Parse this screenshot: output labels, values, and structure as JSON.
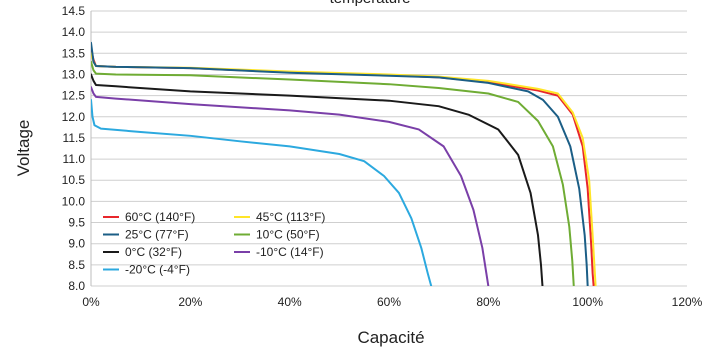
{
  "chart_data": {
    "type": "line",
    "title": "temperature",
    "xlabel": "Capacité",
    "ylabel": "Voltage",
    "xlim": [
      0,
      120
    ],
    "ylim": [
      8.0,
      14.5
    ],
    "x_unit": "%",
    "x_ticks": [
      "0%",
      "20%",
      "40%",
      "60%",
      "80%",
      "100%",
      "120%"
    ],
    "y_ticks": [
      "8.0",
      "8.5",
      "9.0",
      "9.5",
      "10.0",
      "10.5",
      "11.0",
      "11.5",
      "12.0",
      "12.5",
      "13.0",
      "13.5",
      "14.0",
      "14.5"
    ],
    "grid": true,
    "legend_position": "bottom-left",
    "series": [
      {
        "name": "60°C (140°F)",
        "color": "#e8262b",
        "points": [
          [
            0,
            13.6
          ],
          [
            0.5,
            13.35
          ],
          [
            1,
            13.2
          ],
          [
            5,
            13.18
          ],
          [
            20,
            13.15
          ],
          [
            40,
            13.05
          ],
          [
            60,
            12.98
          ],
          [
            70,
            12.93
          ],
          [
            80,
            12.82
          ],
          [
            90,
            12.62
          ],
          [
            94,
            12.5
          ],
          [
            97,
            12.05
          ],
          [
            99,
            11.3
          ],
          [
            100,
            10.3
          ],
          [
            100.7,
            9.0
          ],
          [
            101,
            8.3
          ],
          [
            101.2,
            8.0
          ]
        ]
      },
      {
        "name": "45°C (113°F)",
        "color": "#ffe528",
        "points": [
          [
            0,
            13.5
          ],
          [
            0.5,
            13.3
          ],
          [
            1,
            13.2
          ],
          [
            5,
            13.18
          ],
          [
            20,
            13.16
          ],
          [
            40,
            13.07
          ],
          [
            60,
            13.0
          ],
          [
            70,
            12.95
          ],
          [
            80,
            12.85
          ],
          [
            90,
            12.66
          ],
          [
            94,
            12.55
          ],
          [
            97,
            12.1
          ],
          [
            99,
            11.5
          ],
          [
            100.3,
            10.5
          ],
          [
            101,
            9.2
          ],
          [
            101.4,
            8.4
          ],
          [
            101.6,
            8.0
          ]
        ]
      },
      {
        "name": "25°C (77°F)",
        "color": "#1b5e86",
        "points": [
          [
            0,
            13.75
          ],
          [
            0.5,
            13.3
          ],
          [
            1,
            13.2
          ],
          [
            5,
            13.18
          ],
          [
            20,
            13.15
          ],
          [
            40,
            13.04
          ],
          [
            60,
            12.97
          ],
          [
            70,
            12.93
          ],
          [
            80,
            12.8
          ],
          [
            88,
            12.6
          ],
          [
            91,
            12.4
          ],
          [
            94,
            12.0
          ],
          [
            96.5,
            11.3
          ],
          [
            98.3,
            10.3
          ],
          [
            99.4,
            9.2
          ],
          [
            99.8,
            8.5
          ],
          [
            100,
            8.0
          ]
        ]
      },
      {
        "name": "10°C (50°F)",
        "color": "#6fac34",
        "points": [
          [
            0,
            13.3
          ],
          [
            0.5,
            13.1
          ],
          [
            1,
            13.02
          ],
          [
            5,
            13.0
          ],
          [
            20,
            12.98
          ],
          [
            40,
            12.88
          ],
          [
            60,
            12.77
          ],
          [
            70,
            12.68
          ],
          [
            80,
            12.55
          ],
          [
            86,
            12.35
          ],
          [
            90,
            11.9
          ],
          [
            93,
            11.3
          ],
          [
            95,
            10.4
          ],
          [
            96.3,
            9.4
          ],
          [
            96.9,
            8.6
          ],
          [
            97.2,
            8.0
          ]
        ]
      },
      {
        "name": "0°C (32°F)",
        "color": "#1a1a1a",
        "points": [
          [
            0,
            13.0
          ],
          [
            0.5,
            12.85
          ],
          [
            1,
            12.75
          ],
          [
            5,
            12.72
          ],
          [
            20,
            12.6
          ],
          [
            40,
            12.5
          ],
          [
            60,
            12.38
          ],
          [
            70,
            12.25
          ],
          [
            76,
            12.05
          ],
          [
            82,
            11.7
          ],
          [
            86,
            11.1
          ],
          [
            88.5,
            10.2
          ],
          [
            90,
            9.2
          ],
          [
            90.6,
            8.5
          ],
          [
            90.9,
            8.0
          ]
        ]
      },
      {
        "name": "-10°C (14°F)",
        "color": "#7a3fa8",
        "points": [
          [
            0,
            12.7
          ],
          [
            0.5,
            12.55
          ],
          [
            1,
            12.47
          ],
          [
            5,
            12.43
          ],
          [
            20,
            12.3
          ],
          [
            40,
            12.15
          ],
          [
            50,
            12.05
          ],
          [
            60,
            11.88
          ],
          [
            66,
            11.7
          ],
          [
            71,
            11.3
          ],
          [
            74.5,
            10.6
          ],
          [
            77,
            9.8
          ],
          [
            78.8,
            8.9
          ],
          [
            79.6,
            8.3
          ],
          [
            80,
            8.0
          ]
        ]
      },
      {
        "name": "-20°C (-4°F)",
        "color": "#2ca9df",
        "points": [
          [
            0,
            12.4
          ],
          [
            0.3,
            12.0
          ],
          [
            0.7,
            11.8
          ],
          [
            2,
            11.72
          ],
          [
            10,
            11.64
          ],
          [
            20,
            11.55
          ],
          [
            30,
            11.42
          ],
          [
            40,
            11.3
          ],
          [
            50,
            11.12
          ],
          [
            55,
            10.95
          ],
          [
            59,
            10.6
          ],
          [
            62,
            10.2
          ],
          [
            64.5,
            9.6
          ],
          [
            66.5,
            8.9
          ],
          [
            67.8,
            8.3
          ],
          [
            68.5,
            8.0
          ]
        ]
      }
    ]
  }
}
